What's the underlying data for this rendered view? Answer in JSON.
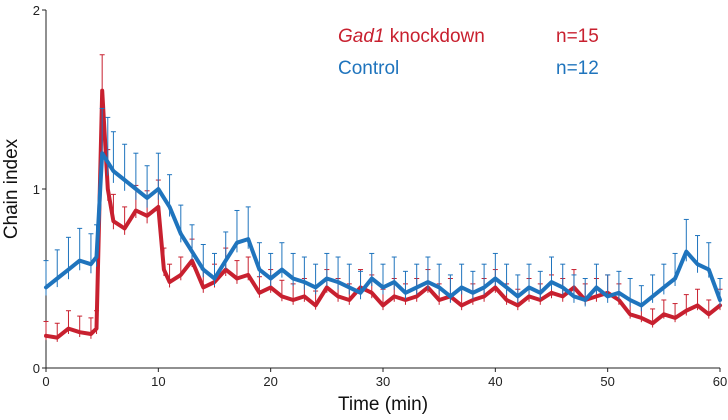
{
  "chart_data": {
    "type": "line",
    "title": "",
    "xlabel": "Time (min)",
    "ylabel": "Chain index",
    "xlim": [
      0,
      60
    ],
    "ylim": [
      0,
      2
    ],
    "x_ticks": [
      "0",
      "10",
      "20",
      "30",
      "40",
      "50",
      "60"
    ],
    "y_ticks": [
      "0",
      "1",
      "2"
    ],
    "grid": false,
    "error_bars": true,
    "legend_position": "top-right",
    "series": [
      {
        "name_italic": "Gad1",
        "name_rest": " knockdown",
        "n_label": "n=15",
        "color": "#c8202f",
        "x": [
          0,
          1,
          2,
          3,
          4,
          4.5,
          5,
          5.5,
          6,
          7,
          8,
          9,
          10,
          10.5,
          11,
          12,
          13,
          14,
          15,
          16,
          17,
          18,
          19,
          20,
          21,
          22,
          23,
          24,
          25,
          26,
          27,
          28,
          29,
          30,
          31,
          32,
          33,
          34,
          35,
          36,
          37,
          38,
          39,
          40,
          41,
          42,
          43,
          44,
          45,
          46,
          47,
          48,
          49,
          50,
          51,
          52,
          53,
          54,
          55,
          56,
          57,
          58,
          59,
          60
        ],
        "y": [
          0.18,
          0.17,
          0.22,
          0.2,
          0.19,
          0.22,
          1.55,
          1.0,
          0.82,
          0.78,
          0.88,
          0.85,
          0.9,
          0.55,
          0.48,
          0.52,
          0.6,
          0.45,
          0.48,
          0.55,
          0.5,
          0.52,
          0.42,
          0.45,
          0.4,
          0.38,
          0.4,
          0.35,
          0.45,
          0.4,
          0.38,
          0.45,
          0.42,
          0.35,
          0.4,
          0.38,
          0.4,
          0.45,
          0.38,
          0.4,
          0.35,
          0.38,
          0.4,
          0.45,
          0.38,
          0.35,
          0.4,
          0.38,
          0.42,
          0.4,
          0.45,
          0.38,
          0.4,
          0.42,
          0.38,
          0.3,
          0.28,
          0.25,
          0.3,
          0.28,
          0.32,
          0.35,
          0.3,
          0.35
        ],
        "err": [
          0.08,
          0.08,
          0.1,
          0.09,
          0.09,
          0.1,
          0.2,
          0.22,
          0.15,
          0.12,
          0.14,
          0.14,
          0.15,
          0.12,
          0.1,
          0.1,
          0.12,
          0.1,
          0.1,
          0.12,
          0.1,
          0.1,
          0.09,
          0.1,
          0.09,
          0.09,
          0.1,
          0.08,
          0.1,
          0.1,
          0.09,
          0.1,
          0.1,
          0.09,
          0.1,
          0.09,
          0.1,
          0.1,
          0.09,
          0.1,
          0.09,
          0.09,
          0.1,
          0.1,
          0.09,
          0.09,
          0.1,
          0.09,
          0.1,
          0.1,
          0.1,
          0.09,
          0.1,
          0.1,
          0.09,
          0.08,
          0.08,
          0.08,
          0.08,
          0.08,
          0.09,
          0.09,
          0.08,
          0.09
        ]
      },
      {
        "name_italic": "",
        "name_rest": "Control",
        "n_label": "n=12",
        "color": "#1f74bd",
        "x": [
          0,
          1,
          2,
          3,
          4,
          4.5,
          5,
          5.5,
          6,
          7,
          8,
          9,
          10,
          11,
          12,
          13,
          14,
          15,
          16,
          17,
          18,
          19,
          20,
          21,
          22,
          23,
          24,
          25,
          26,
          27,
          28,
          29,
          30,
          31,
          32,
          33,
          34,
          35,
          36,
          37,
          38,
          39,
          40,
          41,
          42,
          43,
          44,
          45,
          46,
          47,
          48,
          49,
          50,
          51,
          52,
          53,
          54,
          55,
          56,
          57,
          58,
          59,
          60
        ],
        "y": [
          0.45,
          0.5,
          0.55,
          0.6,
          0.58,
          0.62,
          1.2,
          1.15,
          1.1,
          1.05,
          1.0,
          0.95,
          1.0,
          0.9,
          0.75,
          0.65,
          0.55,
          0.5,
          0.6,
          0.7,
          0.72,
          0.55,
          0.5,
          0.55,
          0.5,
          0.48,
          0.45,
          0.5,
          0.48,
          0.45,
          0.42,
          0.5,
          0.45,
          0.48,
          0.42,
          0.45,
          0.48,
          0.45,
          0.4,
          0.45,
          0.42,
          0.45,
          0.5,
          0.45,
          0.4,
          0.45,
          0.42,
          0.48,
          0.45,
          0.4,
          0.38,
          0.45,
          0.4,
          0.42,
          0.38,
          0.35,
          0.4,
          0.45,
          0.5,
          0.65,
          0.58,
          0.55,
          0.38
        ],
        "err": [
          0.15,
          0.16,
          0.18,
          0.18,
          0.17,
          0.18,
          0.25,
          0.25,
          0.22,
          0.2,
          0.2,
          0.18,
          0.2,
          0.18,
          0.16,
          0.15,
          0.14,
          0.14,
          0.16,
          0.18,
          0.18,
          0.15,
          0.14,
          0.15,
          0.14,
          0.14,
          0.13,
          0.14,
          0.14,
          0.13,
          0.12,
          0.14,
          0.13,
          0.14,
          0.12,
          0.13,
          0.14,
          0.13,
          0.12,
          0.13,
          0.12,
          0.13,
          0.14,
          0.13,
          0.12,
          0.13,
          0.12,
          0.14,
          0.13,
          0.12,
          0.12,
          0.13,
          0.12,
          0.12,
          0.12,
          0.11,
          0.12,
          0.13,
          0.14,
          0.18,
          0.16,
          0.15,
          0.12
        ]
      }
    ]
  }
}
